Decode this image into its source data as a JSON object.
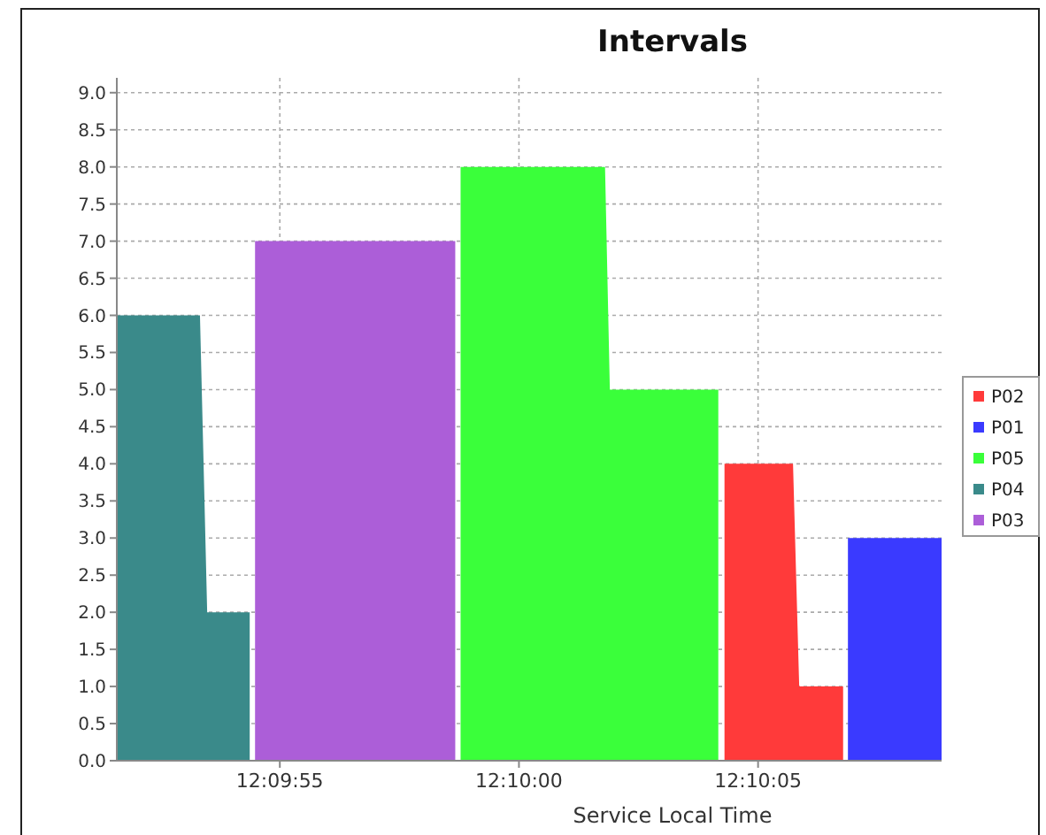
{
  "chart_data": {
    "type": "area",
    "title": "Intervals",
    "xlabel": "Service Local Time",
    "xlim": [
      12.164331,
      12.169122
    ],
    "xticks": [
      {
        "value": 12.165278,
        "label": "12:09:55"
      },
      {
        "value": 12.166667,
        "label": "12:10:00"
      },
      {
        "value": 12.168056,
        "label": "12:10:05"
      }
    ],
    "ylim": [
      0,
      9.2
    ],
    "yticks": [
      {
        "value": 0,
        "label": "0.0"
      },
      {
        "value": 0.5,
        "label": "0.5"
      },
      {
        "value": 1,
        "label": "1.0"
      },
      {
        "value": 1.5,
        "label": "1.5"
      },
      {
        "value": 2,
        "label": "2.0"
      },
      {
        "value": 2.5,
        "label": "2.5"
      },
      {
        "value": 3,
        "label": "3.0"
      },
      {
        "value": 3.5,
        "label": "3.5"
      },
      {
        "value": 4,
        "label": "4.0"
      },
      {
        "value": 4.5,
        "label": "4.5"
      },
      {
        "value": 5,
        "label": "5.0"
      },
      {
        "value": 5.5,
        "label": "5.5"
      },
      {
        "value": 6,
        "label": "6.0"
      },
      {
        "value": 6.5,
        "label": "6.5"
      },
      {
        "value": 7,
        "label": "7.0"
      },
      {
        "value": 7.5,
        "label": "7.5"
      },
      {
        "value": 8,
        "label": "8.0"
      },
      {
        "value": 8.5,
        "label": "8.5"
      },
      {
        "value": 9,
        "label": "9.0"
      }
    ],
    "grid": true,
    "legend": "right",
    "series": [
      {
        "name": "P02",
        "color": "#ff3a3a",
        "x": [
          12.167861,
          12.167861,
          12.168259,
          12.168295,
          12.16855,
          12.16855
        ],
        "values": [
          0,
          4,
          4,
          1,
          1,
          0
        ]
      },
      {
        "name": "P01",
        "color": "#3a3aff",
        "x": [
          12.168578,
          12.168578,
          12.169122,
          12.169122
        ],
        "values": [
          0,
          3,
          3,
          0
        ]
      },
      {
        "name": "P05",
        "color": "#3aff3a",
        "x": [
          12.166328,
          12.166328,
          12.167167,
          12.167195,
          12.167825,
          12.167825
        ],
        "values": [
          0,
          8,
          8,
          5,
          5,
          0
        ]
      },
      {
        "name": "P04",
        "color": "#3a8a8a",
        "x": [
          12.164331,
          12.164331,
          12.164814,
          12.164856,
          12.165103,
          12.165103
        ],
        "values": [
          0,
          6,
          6,
          2,
          2,
          0
        ]
      },
      {
        "name": "P03",
        "color": "#ac5ed8",
        "x": [
          12.165134,
          12.165134,
          12.166297,
          12.166297
        ],
        "values": [
          0,
          7,
          7,
          0
        ]
      }
    ]
  }
}
